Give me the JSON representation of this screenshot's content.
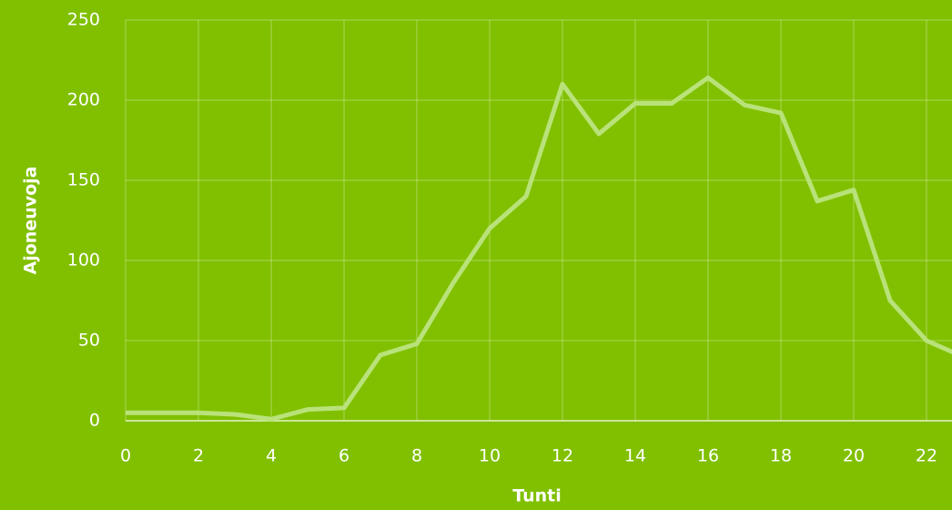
{
  "chart_data": {
    "type": "line",
    "x_label": "Tunti",
    "y_label": "Ajoneuvoja",
    "x": [
      0,
      1,
      2,
      3,
      4,
      5,
      6,
      7,
      8,
      9,
      10,
      11,
      12,
      13,
      14,
      15,
      16,
      17,
      18,
      19,
      20,
      21,
      22,
      23
    ],
    "series": [
      {
        "name": "Ajoneuvoja",
        "color": "#b9e27a",
        "values": [
          5,
          5,
          5,
          4,
          1,
          7,
          8,
          41,
          48,
          86,
          120,
          140,
          210,
          179,
          198,
          198,
          214,
          197,
          192,
          137,
          144,
          75,
          50,
          40
        ]
      }
    ],
    "xlim": [
      0,
      22.7
    ],
    "ylim": [
      0,
      250
    ],
    "xticks": [
      0,
      2,
      4,
      6,
      8,
      10,
      12,
      14,
      16,
      18,
      20,
      22
    ],
    "yticks": [
      0,
      50,
      100,
      150,
      200,
      250
    ],
    "grid": true
  }
}
